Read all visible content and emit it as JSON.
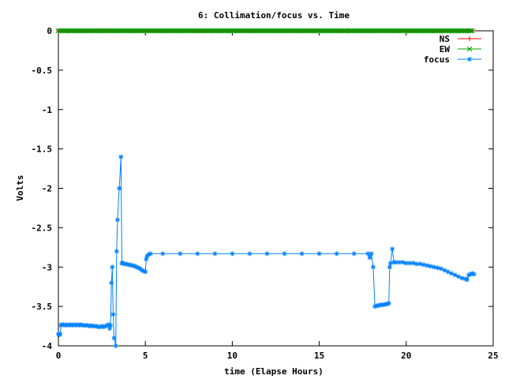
{
  "chart_data": {
    "type": "line",
    "title": "6: Collimation/focus vs. Time",
    "xlabel": "time (Elapse Hours)",
    "ylabel": "Volts",
    "xlim": [
      0,
      25
    ],
    "ylim": [
      -4,
      0
    ],
    "xticks": [
      "0",
      "5",
      "10",
      "15",
      "20",
      "25"
    ],
    "yticks": [
      "0",
      "-0.5",
      "-1",
      "-1.5",
      "-2",
      "-2.5",
      "-3",
      "-3.5",
      "-4"
    ],
    "xtick_values": [
      0,
      5,
      10,
      15,
      20,
      25
    ],
    "ytick_values": [
      0,
      -0.5,
      -1,
      -1.5,
      -2,
      -2.5,
      -3,
      -3.5,
      -4
    ],
    "grid": false,
    "legend_position": "top-right",
    "series": [
      {
        "name": "NS",
        "color": "#ff0000",
        "marker": "plus",
        "x_start": 0,
        "x_end": 23.8,
        "x_step": 0.1,
        "value": 0
      },
      {
        "name": "EW",
        "color": "#00a000",
        "marker": "cross",
        "x_start": 0,
        "x_end": 23.8,
        "x_step": 0.1,
        "value": 0
      },
      {
        "name": "focus",
        "color": "#0080ff",
        "marker": "star",
        "points": [
          [
            0,
            -3.85
          ],
          [
            0.05,
            -3.86
          ],
          [
            0.1,
            -3.85
          ],
          [
            0.15,
            -3.74
          ],
          [
            0.2,
            -3.73
          ],
          [
            0.3,
            -3.73
          ],
          [
            0.4,
            -3.74
          ],
          [
            0.5,
            -3.73
          ],
          [
            0.6,
            -3.74
          ],
          [
            0.7,
            -3.73
          ],
          [
            0.8,
            -3.74
          ],
          [
            0.9,
            -3.73
          ],
          [
            1.0,
            -3.74
          ],
          [
            1.1,
            -3.73
          ],
          [
            1.2,
            -3.74
          ],
          [
            1.3,
            -3.73
          ],
          [
            1.4,
            -3.74
          ],
          [
            1.5,
            -3.74
          ],
          [
            1.6,
            -3.74
          ],
          [
            1.7,
            -3.74
          ],
          [
            1.8,
            -3.75
          ],
          [
            1.9,
            -3.74
          ],
          [
            2.0,
            -3.75
          ],
          [
            2.1,
            -3.75
          ],
          [
            2.2,
            -3.75
          ],
          [
            2.3,
            -3.76
          ],
          [
            2.4,
            -3.76
          ],
          [
            2.5,
            -3.75
          ],
          [
            2.6,
            -3.76
          ],
          [
            2.7,
            -3.75
          ],
          [
            2.8,
            -3.74
          ],
          [
            2.9,
            -3.73
          ],
          [
            2.95,
            -3.78
          ],
          [
            3.0,
            -3.74
          ],
          [
            3.05,
            -3.2
          ],
          [
            3.1,
            -3.0
          ],
          [
            3.15,
            -3.6
          ],
          [
            3.2,
            -3.9
          ],
          [
            3.3,
            -4.0
          ],
          [
            3.35,
            -2.8
          ],
          [
            3.4,
            -2.4
          ],
          [
            3.5,
            -2.0
          ],
          [
            3.6,
            -1.6
          ],
          [
            3.65,
            -2.95
          ],
          [
            3.7,
            -2.95
          ],
          [
            3.8,
            -2.96
          ],
          [
            3.9,
            -2.96
          ],
          [
            4.0,
            -2.97
          ],
          [
            4.1,
            -2.97
          ],
          [
            4.2,
            -2.98
          ],
          [
            4.3,
            -2.98
          ],
          [
            4.4,
            -2.99
          ],
          [
            4.5,
            -3.0
          ],
          [
            4.6,
            -3.01
          ],
          [
            4.7,
            -3.02
          ],
          [
            4.8,
            -3.04
          ],
          [
            4.9,
            -3.05
          ],
          [
            5.0,
            -3.06
          ],
          [
            5.05,
            -2.9
          ],
          [
            5.1,
            -2.86
          ],
          [
            5.2,
            -2.84
          ],
          [
            5.3,
            -2.83
          ],
          [
            6,
            -2.83
          ],
          [
            7,
            -2.83
          ],
          [
            8,
            -2.83
          ],
          [
            9,
            -2.83
          ],
          [
            10,
            -2.83
          ],
          [
            11,
            -2.83
          ],
          [
            12,
            -2.83
          ],
          [
            13,
            -2.83
          ],
          [
            14,
            -2.83
          ],
          [
            15,
            -2.83
          ],
          [
            16,
            -2.83
          ],
          [
            17,
            -2.83
          ],
          [
            17.8,
            -2.83
          ],
          [
            17.9,
            -2.88
          ],
          [
            18.0,
            -2.83
          ],
          [
            18.1,
            -3.0
          ],
          [
            18.2,
            -3.5
          ],
          [
            18.3,
            -3.49
          ],
          [
            18.4,
            -3.49
          ],
          [
            18.5,
            -3.48
          ],
          [
            18.6,
            -3.48
          ],
          [
            18.7,
            -3.48
          ],
          [
            18.8,
            -3.47
          ],
          [
            18.9,
            -3.47
          ],
          [
            19.0,
            -3.46
          ],
          [
            19.05,
            -3.0
          ],
          [
            19.1,
            -2.95
          ],
          [
            19.2,
            -2.77
          ],
          [
            19.3,
            -2.94
          ],
          [
            19.4,
            -2.94
          ],
          [
            19.6,
            -2.94
          ],
          [
            19.8,
            -2.94
          ],
          [
            20.0,
            -2.95
          ],
          [
            20.2,
            -2.95
          ],
          [
            20.4,
            -2.95
          ],
          [
            20.6,
            -2.96
          ],
          [
            20.8,
            -2.96
          ],
          [
            21.0,
            -2.97
          ],
          [
            21.2,
            -2.98
          ],
          [
            21.4,
            -2.99
          ],
          [
            21.6,
            -3.0
          ],
          [
            21.8,
            -3.01
          ],
          [
            22.0,
            -3.02
          ],
          [
            22.2,
            -3.04
          ],
          [
            22.4,
            -3.06
          ],
          [
            22.6,
            -3.08
          ],
          [
            22.8,
            -3.1
          ],
          [
            23.0,
            -3.12
          ],
          [
            23.2,
            -3.14
          ],
          [
            23.4,
            -3.15
          ],
          [
            23.5,
            -3.16
          ],
          [
            23.6,
            -3.1
          ],
          [
            23.7,
            -3.09
          ],
          [
            23.8,
            -3.08
          ],
          [
            23.9,
            -3.09
          ]
        ]
      }
    ]
  }
}
